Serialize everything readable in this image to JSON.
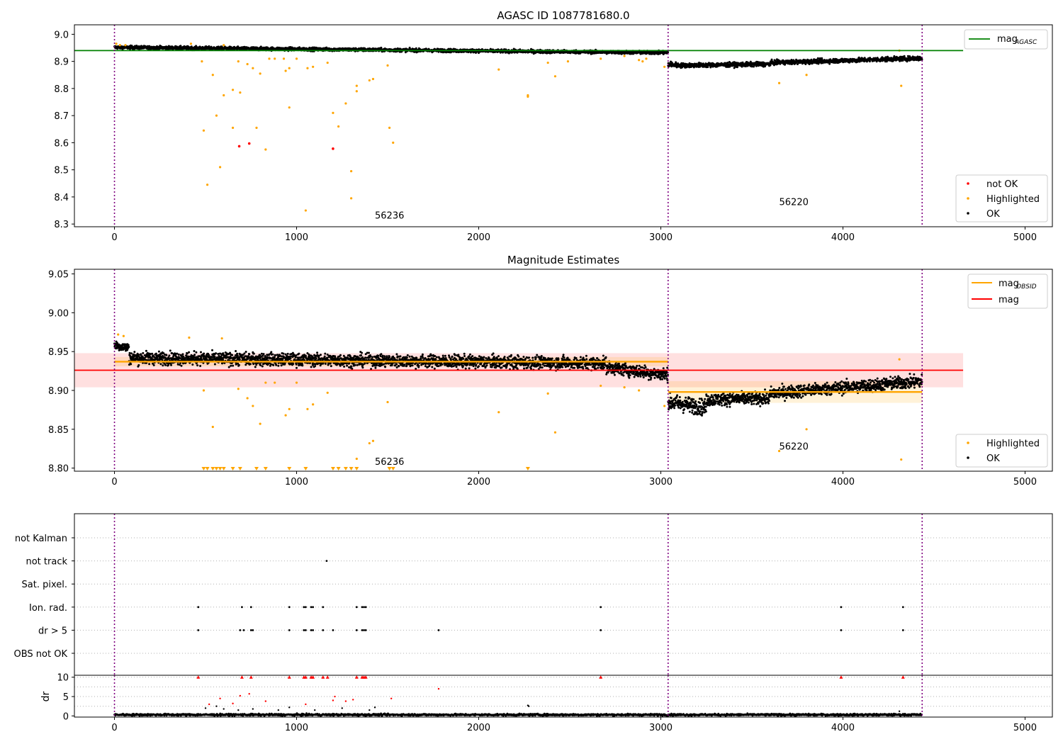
{
  "chart_data": [
    {
      "type": "scatter",
      "title": "AGASC ID 1087781680.0",
      "xlabel": "",
      "ylabel": "",
      "xlim": [
        -220,
        5150
      ],
      "ylim": [
        8.29,
        9.035
      ],
      "x_ticks": [
        0,
        1000,
        2000,
        3000,
        4000,
        5000
      ],
      "y_ticks": [
        8.3,
        8.4,
        8.5,
        8.6,
        8.7,
        8.8,
        8.9,
        9.0
      ],
      "legend_top": {
        "position": "top-right",
        "entries": [
          {
            "label": "mag",
            "sub": "AGASC",
            "color": "#008000"
          }
        ]
      },
      "legend_bottom": {
        "position": "bottom-right",
        "entries": [
          {
            "label": "not OK",
            "color": "#ff0000"
          },
          {
            "label": "Highlighted",
            "color": "#ffa500"
          },
          {
            "label": "OK",
            "color": "#000000"
          }
        ]
      },
      "hline": {
        "name": "mag_AGASC",
        "y": 8.94,
        "x": [
          -220,
          4660
        ],
        "color": "#008000"
      },
      "obsid_boundaries": [
        0,
        3040,
        4435
      ],
      "obsid_labels": [
        {
          "text": "56236",
          "x": 1430,
          "y": 8.32
        },
        {
          "text": "56220",
          "x": 3650,
          "y": 8.37
        }
      ],
      "ok_band": {
        "segments": [
          {
            "x": [
              0,
              3040
            ],
            "y_start": 8.952,
            "y_end": 8.932,
            "scatter": 0.006
          },
          {
            "x": [
              3040,
              3100
            ],
            "y_start": 8.89,
            "y_end": 8.885,
            "scatter": 0.01
          },
          {
            "x": [
              3100,
              3600
            ],
            "y_start": 8.885,
            "y_end": 8.89,
            "scatter": 0.008
          },
          {
            "x": [
              3600,
              4435
            ],
            "y_start": 8.895,
            "y_end": 8.912,
            "scatter": 0.008
          }
        ]
      },
      "highlighted": [
        [
          10,
          8.965
        ],
        [
          30,
          8.96
        ],
        [
          60,
          8.96
        ],
        [
          420,
          8.965
        ],
        [
          480,
          8.9
        ],
        [
          490,
          8.645
        ],
        [
          510,
          8.445
        ],
        [
          540,
          8.85
        ],
        [
          560,
          8.7
        ],
        [
          580,
          8.51
        ],
        [
          600,
          8.775
        ],
        [
          600,
          8.96
        ],
        [
          650,
          8.795
        ],
        [
          650,
          8.655
        ],
        [
          680,
          8.9
        ],
        [
          690,
          8.785
        ],
        [
          730,
          8.89
        ],
        [
          760,
          8.875
        ],
        [
          780,
          8.655
        ],
        [
          800,
          8.855
        ],
        [
          830,
          8.575
        ],
        [
          850,
          8.91
        ],
        [
          880,
          8.91
        ],
        [
          930,
          8.91
        ],
        [
          940,
          8.865
        ],
        [
          960,
          8.73
        ],
        [
          960,
          8.875
        ],
        [
          1000,
          8.91
        ],
        [
          1050,
          8.35
        ],
        [
          1060,
          8.875
        ],
        [
          1090,
          8.88
        ],
        [
          1170,
          8.895
        ],
        [
          1200,
          8.71
        ],
        [
          1230,
          8.66
        ],
        [
          1270,
          8.745
        ],
        [
          1300,
          8.495
        ],
        [
          1300,
          8.395
        ],
        [
          1330,
          8.79
        ],
        [
          1330,
          8.81
        ],
        [
          1400,
          8.83
        ],
        [
          1420,
          8.835
        ],
        [
          1500,
          8.885
        ],
        [
          1510,
          8.655
        ],
        [
          1530,
          8.6
        ],
        [
          2110,
          8.87
        ],
        [
          2270,
          8.77
        ],
        [
          2270,
          8.775
        ],
        [
          2380,
          8.895
        ],
        [
          2420,
          8.845
        ],
        [
          2490,
          8.9
        ],
        [
          2670,
          8.91
        ],
        [
          2800,
          8.92
        ],
        [
          2880,
          8.905
        ],
        [
          2900,
          8.9
        ],
        [
          2920,
          8.91
        ],
        [
          3020,
          8.88
        ],
        [
          3650,
          8.82
        ],
        [
          3800,
          8.85
        ],
        [
          4310,
          8.94
        ],
        [
          4320,
          8.81
        ]
      ],
      "not_ok": [
        [
          685,
          8.587
        ],
        [
          740,
          8.597
        ],
        [
          1200,
          8.578
        ]
      ],
      "ok_outliers": []
    },
    {
      "type": "scatter",
      "title": "Magnitude Estimates",
      "xlabel": "",
      "ylabel": "",
      "xlim": [
        -220,
        5150
      ],
      "ylim": [
        8.796,
        9.056
      ],
      "x_ticks": [
        0,
        1000,
        2000,
        3000,
        4000,
        5000
      ],
      "y_ticks": [
        8.8,
        8.85,
        8.9,
        8.95,
        9.0,
        9.05
      ],
      "legend_top": {
        "position": "top-right",
        "entries": [
          {
            "label": "mag",
            "sub": "OBSID",
            "color": "#ffa500"
          },
          {
            "label": "mag",
            "sub": "",
            "color": "#ff0000"
          }
        ]
      },
      "legend_bottom": {
        "position": "bottom-right",
        "entries": [
          {
            "label": "Highlighted",
            "color": "#ffa500"
          },
          {
            "label": "OK",
            "color": "#000000"
          }
        ]
      },
      "mag_line": {
        "y": 8.926,
        "band": [
          8.904,
          8.948
        ],
        "x": [
          -220,
          4660
        ],
        "color": "#ff0000"
      },
      "obsid_mags": [
        {
          "x": [
            0,
            3040
          ],
          "y": 8.937,
          "band": [
            8.931,
            8.943
          ]
        },
        {
          "x": [
            3040,
            4435
          ],
          "y": 8.898,
          "band": [
            8.884,
            8.912
          ]
        }
      ],
      "obsid_boundaries": [
        0,
        3040,
        4435
      ],
      "obsid_labels": [
        {
          "text": "56236",
          "x": 1430,
          "y": 8.804
        },
        {
          "text": "56220",
          "x": 3650,
          "y": 8.824
        }
      ],
      "ok_band": {
        "segments": [
          {
            "x": [
              0,
              80
            ],
            "y_start": 8.958,
            "y_end": 8.955,
            "scatter": 0.006
          },
          {
            "x": [
              80,
              2700
            ],
            "y_start": 8.942,
            "y_end": 8.935,
            "scatter": 0.008
          },
          {
            "x": [
              2700,
              3040
            ],
            "y_start": 8.93,
            "y_end": 8.92,
            "scatter": 0.008
          },
          {
            "x": [
              3040,
              3250
            ],
            "y_start": 8.885,
            "y_end": 8.878,
            "scatter": 0.01
          },
          {
            "x": [
              3250,
              3600
            ],
            "y_start": 8.888,
            "y_end": 8.89,
            "scatter": 0.008
          },
          {
            "x": [
              3600,
              4435
            ],
            "y_start": 8.896,
            "y_end": 8.912,
            "scatter": 0.008
          }
        ]
      },
      "highlighted": [
        [
          20,
          8.972
        ],
        [
          50,
          8.97
        ],
        [
          410,
          8.968
        ],
        [
          490,
          8.9
        ],
        [
          540,
          8.853
        ],
        [
          590,
          8.967
        ],
        [
          680,
          8.902
        ],
        [
          730,
          8.89
        ],
        [
          760,
          8.88
        ],
        [
          800,
          8.857
        ],
        [
          830,
          8.91
        ],
        [
          880,
          8.91
        ],
        [
          940,
          8.868
        ],
        [
          960,
          8.876
        ],
        [
          1000,
          8.91
        ],
        [
          1060,
          8.876
        ],
        [
          1090,
          8.882
        ],
        [
          1170,
          8.897
        ],
        [
          1330,
          8.812
        ],
        [
          1400,
          8.832
        ],
        [
          1420,
          8.835
        ],
        [
          1500,
          8.885
        ],
        [
          2110,
          8.872
        ],
        [
          2380,
          8.896
        ],
        [
          2420,
          8.846
        ],
        [
          2670,
          8.906
        ],
        [
          2800,
          8.904
        ],
        [
          2880,
          8.9
        ],
        [
          3020,
          8.88
        ],
        [
          3650,
          8.822
        ],
        [
          3800,
          8.85
        ],
        [
          4310,
          8.94
        ],
        [
          4320,
          8.811
        ]
      ],
      "highlighted_below_axis": [
        490,
        510,
        540,
        560,
        580,
        600,
        650,
        690,
        780,
        830,
        960,
        1050,
        1200,
        1230,
        1270,
        1300,
        1330,
        1510,
        1530,
        2270
      ],
      "ok_outliers": []
    },
    {
      "type": "scatter",
      "title": "",
      "xlabel": "",
      "ylabel": "",
      "xlim": [
        -220,
        5150
      ],
      "x_ticks": [
        0,
        1000,
        2000,
        3000,
        4000,
        5000
      ],
      "obsid_boundaries": [
        0,
        3040,
        4435
      ],
      "flag_rows": [
        "not Kalman",
        "not track",
        "Sat. pixel.",
        "Ion. rad.",
        "dr > 5",
        "OBS not OK"
      ],
      "flags": {
        "not track": [
          1165
        ],
        "Ion. rad.": [
          460,
          700,
          750,
          960,
          1040,
          1050,
          1080,
          1090,
          1145,
          1330,
          1360,
          1370,
          1380,
          2670,
          3990,
          4330
        ],
        "dr > 5": [
          460,
          690,
          710,
          750,
          760,
          960,
          1040,
          1050,
          1080,
          1090,
          1145,
          1200,
          1330,
          1360,
          1370,
          1380,
          1780,
          2670,
          3990,
          4330
        ]
      }
    },
    {
      "type": "scatter",
      "title": "",
      "xlabel": "",
      "ylabel": "dr",
      "xlim": [
        -220,
        5150
      ],
      "ylim": [
        -0.3,
        10.5
      ],
      "x_ticks": [
        0,
        1000,
        2000,
        3000,
        4000,
        5000
      ],
      "y_ticks": [
        0,
        5,
        10
      ],
      "obsid_boundaries": [
        0,
        3040,
        4435
      ],
      "baseline": {
        "x": [
          0,
          4435
        ],
        "mean": 0.3,
        "scatter": 0.25
      },
      "red_capped": [
        460,
        700,
        750,
        960,
        1040,
        1050,
        1080,
        1090,
        1145,
        1170,
        1330,
        1360,
        1370,
        1380,
        2670,
        3990,
        4330
      ],
      "red_points": [
        [
          520,
          3.0
        ],
        [
          580,
          4.5
        ],
        [
          650,
          3.2
        ],
        [
          690,
          5.2
        ],
        [
          740,
          5.7
        ],
        [
          830,
          3.8
        ],
        [
          1050,
          3.0
        ],
        [
          1200,
          4.0
        ],
        [
          1210,
          5.0
        ],
        [
          1270,
          3.8
        ],
        [
          1310,
          4.2
        ],
        [
          1520,
          4.5
        ],
        [
          1780,
          7.0
        ]
      ],
      "black_points": [
        [
          500,
          2.0
        ],
        [
          560,
          2.5
        ],
        [
          600,
          1.8
        ],
        [
          680,
          1.5
        ],
        [
          760,
          1.8
        ],
        [
          900,
          1.5
        ],
        [
          960,
          2.2
        ],
        [
          1100,
          1.5
        ],
        [
          1250,
          2.0
        ],
        [
          1400,
          1.5
        ],
        [
          1430,
          2.2
        ],
        [
          2270,
          2.7
        ],
        [
          2275,
          2.5
        ],
        [
          4310,
          1.2
        ]
      ]
    }
  ]
}
